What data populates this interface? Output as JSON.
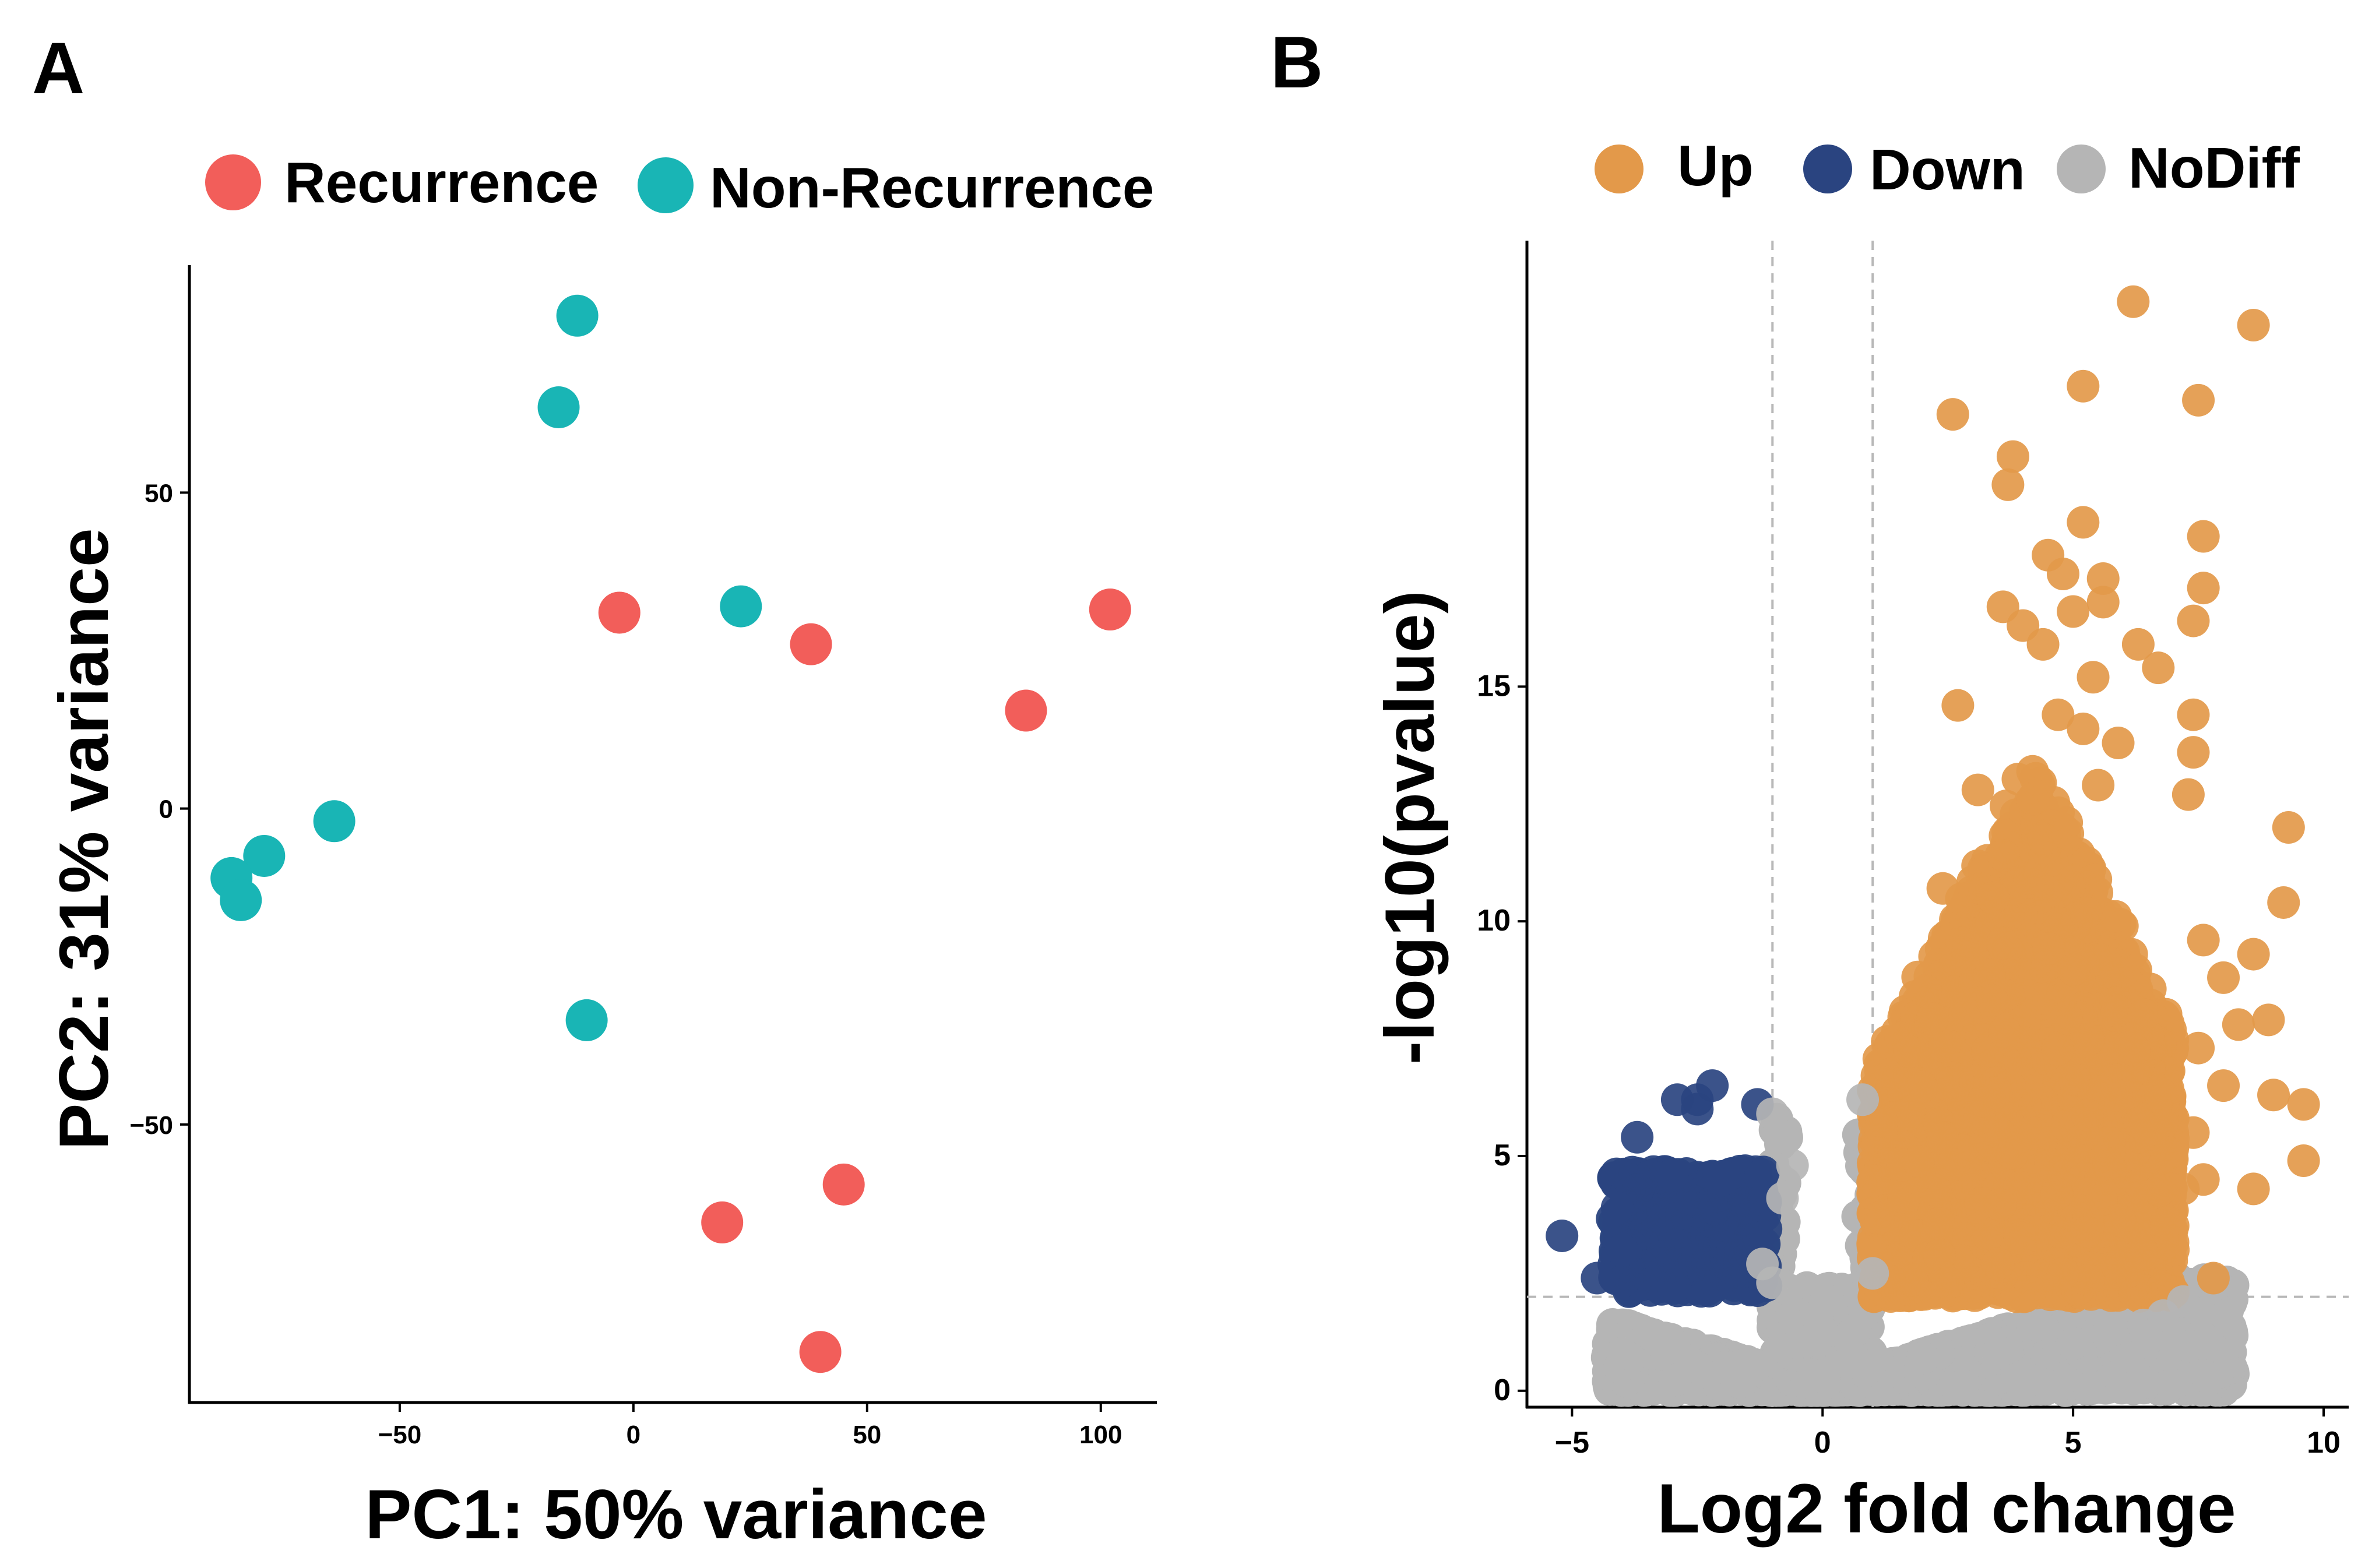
{
  "panels": {
    "a_label": "A",
    "b_label": "B"
  },
  "colors": {
    "recurrence": "#F25E5A",
    "non_recurrence": "#19B5B5",
    "up": "#E3994A",
    "down": "#2A4480",
    "nodiff": "#B5B5B5"
  },
  "chart_data": [
    {
      "type": "scatter",
      "panel": "A",
      "xlabel": "PC1: 50% variance",
      "ylabel": "PC2: 31% variance",
      "xlim": [
        -95,
        112
      ],
      "ylim": [
        -94,
        86
      ],
      "xticks": [
        -50,
        0,
        50,
        100
      ],
      "yticks": [
        -50,
        0,
        50
      ],
      "xtick_labels": [
        "−50",
        "0",
        "50",
        "100"
      ],
      "ytick_labels": [
        "−50",
        "0",
        "50"
      ],
      "legend_position": "top",
      "series": [
        {
          "name": "Recurrence",
          "color_key": "recurrence",
          "points": [
            [
              -3,
              31
            ],
            [
              38,
              26
            ],
            [
              84,
              15.5
            ],
            [
              102,
              31.5
            ],
            [
              45,
              -59.5
            ],
            [
              19,
              -65.5
            ],
            [
              40,
              -86
            ]
          ]
        },
        {
          "name": "Non-Recurrence",
          "color_key": "non_recurrence",
          "points": [
            [
              -12,
              78
            ],
            [
              -16,
              63.5
            ],
            [
              23,
              32
            ],
            [
              -64,
              -2
            ],
            [
              -79,
              -7.5
            ],
            [
              -86,
              -11
            ],
            [
              -84,
              -14.5
            ],
            [
              -10,
              -33.5
            ]
          ]
        }
      ]
    },
    {
      "type": "scatter",
      "panel": "B",
      "xlabel": "Log2 fold change",
      "ylabel": "-log10(pvalue)",
      "xlim": [
        -5.9,
        10.5
      ],
      "ylim": [
        -0.35,
        24.5
      ],
      "xticks": [
        -5,
        0,
        5,
        10
      ],
      "yticks": [
        0,
        5,
        10,
        15
      ],
      "xtick_labels": [
        "−5",
        "0",
        "5",
        "10"
      ],
      "ytick_labels": [
        "0",
        "5",
        "10",
        "15"
      ],
      "threshold_x": [
        -1,
        1
      ],
      "threshold_y": 2,
      "legend_position": "top",
      "series": [
        {
          "name": "Up",
          "color_key": "up",
          "points": [
            [
              6.2,
              23.2
            ],
            [
              8.6,
              22.7
            ],
            [
              5.2,
              21.4
            ],
            [
              7.5,
              21.1
            ],
            [
              2.6,
              20.8
            ],
            [
              3.8,
              19.9
            ],
            [
              3.7,
              19.3
            ],
            [
              5.2,
              18.5
            ],
            [
              7.6,
              18.2
            ],
            [
              4.5,
              17.8
            ],
            [
              4.8,
              17.4
            ],
            [
              5.6,
              17.3
            ],
            [
              7.6,
              17.1
            ],
            [
              3.6,
              16.7
            ],
            [
              5.0,
              16.6
            ],
            [
              5.6,
              16.8
            ],
            [
              7.4,
              16.4
            ],
            [
              4.0,
              16.3
            ],
            [
              4.4,
              15.9
            ],
            [
              6.3,
              15.9
            ],
            [
              6.7,
              15.4
            ],
            [
              5.4,
              15.2
            ],
            [
              2.7,
              14.6
            ],
            [
              4.7,
              14.4
            ],
            [
              5.2,
              14.1
            ],
            [
              7.4,
              14.4
            ],
            [
              5.9,
              13.8
            ],
            [
              7.4,
              13.6
            ],
            [
              3.1,
              12.8
            ],
            [
              4.2,
              12.6
            ],
            [
              5.5,
              12.9
            ],
            [
              7.3,
              12.7
            ],
            [
              9.3,
              12.0
            ],
            [
              2.4,
              10.7
            ],
            [
              3.4,
              10.5
            ],
            [
              9.2,
              10.4
            ],
            [
              7.6,
              9.6
            ],
            [
              2.9,
              9.3
            ],
            [
              8.6,
              9.3
            ],
            [
              8.0,
              8.8
            ],
            [
              8.9,
              7.9
            ],
            [
              8.3,
              7.8
            ],
            [
              7.5,
              7.3
            ],
            [
              8.0,
              6.5
            ],
            [
              9.0,
              6.3
            ],
            [
              9.6,
              6.1
            ],
            [
              7.4,
              5.5
            ],
            [
              9.6,
              4.9
            ],
            [
              7.6,
              4.5
            ],
            [
              7.2,
              4.3
            ],
            [
              8.6,
              4.3
            ],
            [
              6.3,
              3.1
            ],
            [
              7.0,
              3.0
            ],
            [
              7.8,
              2.4
            ],
            [
              7.0,
              2.1
            ],
            [
              2.5,
              2.3
            ],
            [
              3.5,
              2.7
            ],
            [
              4.8,
              2.5
            ],
            [
              6.0,
              2.8
            ]
          ]
        },
        {
          "name": "Down",
          "color_key": "down",
          "points": [
            [
              -2.2,
              6.5
            ],
            [
              -2.5,
              6.2
            ],
            [
              -2.9,
              6.2
            ],
            [
              -1.3,
              6.1
            ],
            [
              -2.5,
              6.0
            ],
            [
              -3.7,
              5.4
            ],
            [
              -1.2,
              4.6
            ],
            [
              -4.1,
              3.9
            ],
            [
              -5.2,
              3.3
            ],
            [
              -4.0,
              3.0
            ],
            [
              -4.5,
              2.4
            ],
            [
              -3.0,
              4.6
            ],
            [
              -2.0,
              4.5
            ]
          ]
        },
        {
          "name": "NoDiff",
          "color_key": "nodiff",
          "points": [
            [
              -1.0,
              5.9
            ],
            [
              0.8,
              6.2
            ],
            [
              -0.6,
              4.8
            ],
            [
              -0.8,
              4.1
            ],
            [
              -4.2,
              1.1
            ],
            [
              -4.0,
              0.8
            ],
            [
              -3.1,
              0.9
            ],
            [
              -2.5,
              0.5
            ],
            [
              -1.5,
              0.6
            ],
            [
              0.5,
              0.6
            ],
            [
              2.0,
              0.7
            ],
            [
              3.5,
              0.8
            ],
            [
              5.0,
              1.0
            ],
            [
              5.8,
              1.3
            ],
            [
              6.4,
              1.4
            ],
            [
              6.8,
              1.6
            ],
            [
              7.2,
              1.9
            ],
            [
              1.0,
              2.5
            ],
            [
              -1.0,
              2.3
            ],
            [
              -1.2,
              2.7
            ],
            [
              0.0,
              0.3
            ]
          ]
        }
      ]
    }
  ]
}
